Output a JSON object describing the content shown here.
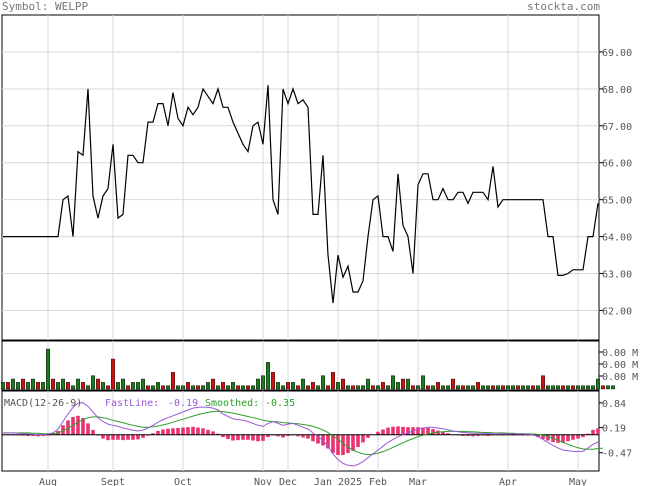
{
  "header": {
    "symbol_label": "Symbol: WELPP",
    "site": "stockta.com"
  },
  "macd": {
    "title": "MACD(12-26-9)",
    "fast_label": "FastLine:",
    "fast_value": "-0.19",
    "smooth_label": "Smoothed:",
    "smooth_value": "-0.35"
  },
  "colors": {
    "price": "#000000",
    "grid": "#d9d9d9",
    "vol_up": "#1e7a1e",
    "vol_down": "#cc1111",
    "hist": "#e8336e",
    "fast": "#9b59d6",
    "smooth": "#2aa02a"
  },
  "chart_data": [
    {
      "type": "line",
      "name": "price",
      "y_ticks": [
        "69.00",
        "68.00",
        "67.00",
        "66.00",
        "65.00",
        "64.00",
        "63.00",
        "62.00"
      ],
      "y_tick_values": [
        69,
        68,
        67,
        66,
        65,
        64,
        63,
        62
      ],
      "ylim": [
        61.2,
        70.0
      ],
      "x_ticks": [
        "Aug",
        "Sept",
        "Oct",
        "Nov",
        "Dec",
        "Jan 2025",
        "Feb",
        "Mar",
        "Apr",
        "May"
      ],
      "x_tick_index": [
        9,
        22,
        36,
        52,
        57,
        67,
        75,
        83,
        101,
        115
      ],
      "values": [
        64.0,
        64.0,
        64.0,
        64.0,
        64.0,
        64.0,
        64.0,
        64.0,
        64.0,
        64.0,
        64.0,
        64.0,
        65.0,
        65.1,
        64.0,
        66.3,
        66.2,
        68.0,
        65.1,
        64.5,
        65.1,
        65.3,
        66.5,
        64.5,
        64.6,
        66.2,
        66.2,
        66.0,
        66.0,
        67.1,
        67.1,
        67.6,
        67.6,
        67.0,
        67.9,
        67.2,
        67.0,
        67.5,
        67.3,
        67.5,
        68.0,
        67.8,
        67.6,
        68.0,
        67.5,
        67.5,
        67.1,
        66.8,
        66.5,
        66.3,
        67.0,
        67.1,
        66.5,
        68.1,
        65.0,
        64.6,
        68.0,
        67.6,
        68.0,
        67.6,
        67.7,
        67.5,
        64.6,
        64.6,
        66.2,
        63.5,
        62.2,
        63.5,
        62.9,
        63.2,
        62.5,
        62.5,
        62.8,
        64.0,
        65.0,
        65.1,
        64.0,
        64.0,
        63.6,
        65.7,
        64.3,
        64.0,
        63.0,
        65.4,
        65.7,
        65.7,
        65.0,
        65.0,
        65.3,
        65.0,
        65.0,
        65.2,
        65.2,
        64.9,
        65.2,
        65.2,
        65.2,
        65.0,
        65.9,
        64.8,
        65.0,
        65.0,
        65.0,
        65.0,
        65.0,
        65.0,
        65.0,
        65.0,
        65.0,
        64.0,
        64.0,
        62.95,
        62.95,
        63.0,
        63.1,
        63.1,
        63.1,
        64.0,
        64.0,
        64.9
      ]
    },
    {
      "type": "bar",
      "name": "volume",
      "y_ticks": [
        "0.00 M",
        "0.00 M",
        "0.00 M"
      ],
      "values": [
        2,
        2,
        3,
        2,
        3,
        2,
        3,
        2,
        2,
        12,
        3,
        2,
        3,
        2,
        1,
        3,
        2,
        1,
        4,
        3,
        2,
        1,
        9,
        2,
        3,
        1,
        2,
        2,
        3,
        1,
        1,
        2,
        1,
        1,
        5,
        1,
        1,
        2,
        1,
        1,
        1,
        2,
        3,
        1,
        2,
        1,
        2,
        1,
        1,
        1,
        1,
        3,
        4,
        8,
        5,
        2,
        1,
        2,
        2,
        1,
        3,
        1,
        2,
        1,
        4,
        1,
        5,
        2,
        3,
        1,
        1,
        1,
        1,
        3,
        1,
        1,
        2,
        1,
        4,
        2,
        3,
        3,
        1,
        1,
        4,
        1,
        1,
        2,
        1,
        1,
        3,
        1,
        1,
        1,
        1,
        2,
        1,
        1,
        1,
        1,
        1,
        1,
        1,
        1,
        1,
        1,
        1,
        1,
        4,
        1,
        1,
        1,
        1,
        1,
        1,
        1,
        1,
        1,
        1,
        3,
        1,
        1,
        1
      ],
      "up": [
        1,
        0,
        1,
        1,
        0,
        1,
        1,
        0,
        1,
        1,
        0,
        1,
        1,
        0,
        1,
        1,
        0,
        1,
        1,
        0,
        1,
        0,
        0,
        1,
        1,
        0,
        1,
        1,
        1,
        0,
        1,
        1,
        0,
        1,
        0,
        1,
        1,
        0,
        1,
        0,
        1,
        1,
        0,
        1,
        0,
        1,
        1,
        0,
        1,
        0,
        1,
        1,
        1,
        1,
        0,
        1,
        1,
        0,
        1,
        0,
        1,
        0,
        0,
        1,
        1,
        0,
        0,
        1,
        0,
        1,
        0,
        1,
        1,
        1,
        0,
        1,
        0,
        1,
        1,
        1,
        0,
        1,
        0,
        1,
        1,
        0,
        1,
        0,
        1,
        1,
        0,
        1,
        0,
        1,
        1,
        0,
        1,
        1,
        0,
        1,
        0,
        1,
        1,
        0,
        1,
        1,
        0,
        1,
        0,
        1,
        1,
        1,
        0,
        1,
        0,
        1,
        1,
        1,
        1,
        1,
        0,
        1,
        1
      ]
    },
    {
      "type": "line",
      "name": "macd",
      "y_ticks": [
        "0.84",
        "0.19",
        "-0.47"
      ],
      "y_tick_values": [
        0.84,
        0.19,
        -0.47
      ],
      "ylim": [
        -0.95,
        1.15
      ],
      "fast": [
        0.05,
        0.05,
        0.05,
        0.04,
        0.03,
        0.02,
        0.01,
        0.0,
        0.0,
        0.02,
        0.05,
        0.15,
        0.35,
        0.55,
        0.72,
        0.83,
        0.84,
        0.75,
        0.6,
        0.45,
        0.35,
        0.28,
        0.25,
        0.22,
        0.18,
        0.15,
        0.12,
        0.1,
        0.12,
        0.18,
        0.25,
        0.33,
        0.4,
        0.45,
        0.5,
        0.55,
        0.6,
        0.65,
        0.7,
        0.72,
        0.73,
        0.72,
        0.7,
        0.65,
        0.55,
        0.48,
        0.42,
        0.4,
        0.38,
        0.35,
        0.3,
        0.25,
        0.22,
        0.3,
        0.35,
        0.3,
        0.25,
        0.28,
        0.3,
        0.25,
        0.2,
        0.15,
        0.05,
        -0.05,
        -0.15,
        -0.3,
        -0.5,
        -0.65,
        -0.75,
        -0.8,
        -0.82,
        -0.78,
        -0.7,
        -0.6,
        -0.5,
        -0.4,
        -0.3,
        -0.2,
        -0.12,
        -0.05,
        0.0,
        0.05,
        0.1,
        0.15,
        0.18,
        0.2,
        0.2,
        0.18,
        0.16,
        0.13,
        0.1,
        0.08,
        0.06,
        0.05,
        0.04,
        0.04,
        0.04,
        0.03,
        0.04,
        0.04,
        0.03,
        0.03,
        0.02,
        0.02,
        0.02,
        0.01,
        0.0,
        -0.05,
        -0.12,
        -0.2,
        -0.28,
        -0.35,
        -0.4,
        -0.42,
        -0.43,
        -0.44,
        -0.43,
        -0.35,
        -0.25,
        -0.19
      ],
      "smoothed": [
        0.05,
        0.05,
        0.05,
        0.05,
        0.05,
        0.05,
        0.04,
        0.04,
        0.03,
        0.03,
        0.03,
        0.05,
        0.1,
        0.17,
        0.25,
        0.33,
        0.4,
        0.45,
        0.47,
        0.47,
        0.45,
        0.42,
        0.38,
        0.35,
        0.32,
        0.28,
        0.25,
        0.22,
        0.2,
        0.2,
        0.21,
        0.23,
        0.26,
        0.29,
        0.33,
        0.37,
        0.41,
        0.45,
        0.49,
        0.53,
        0.56,
        0.59,
        0.61,
        0.62,
        0.61,
        0.59,
        0.57,
        0.54,
        0.51,
        0.48,
        0.45,
        0.42,
        0.38,
        0.36,
        0.35,
        0.34,
        0.32,
        0.31,
        0.3,
        0.29,
        0.27,
        0.25,
        0.22,
        0.18,
        0.13,
        0.06,
        -0.02,
        -0.12,
        -0.22,
        -0.32,
        -0.4,
        -0.46,
        -0.5,
        -0.52,
        -0.51,
        -0.48,
        -0.44,
        -0.39,
        -0.33,
        -0.27,
        -0.21,
        -0.15,
        -0.1,
        -0.05,
        -0.01,
        0.02,
        0.05,
        0.07,
        0.08,
        0.09,
        0.09,
        0.09,
        0.09,
        0.08,
        0.08,
        0.07,
        0.06,
        0.06,
        0.05,
        0.05,
        0.05,
        0.04,
        0.04,
        0.03,
        0.03,
        0.03,
        0.02,
        0.01,
        -0.01,
        -0.05,
        -0.09,
        -0.14,
        -0.2,
        -0.25,
        -0.3,
        -0.34,
        -0.37,
        -0.38,
        -0.38,
        -0.36,
        -0.35
      ]
    }
  ]
}
